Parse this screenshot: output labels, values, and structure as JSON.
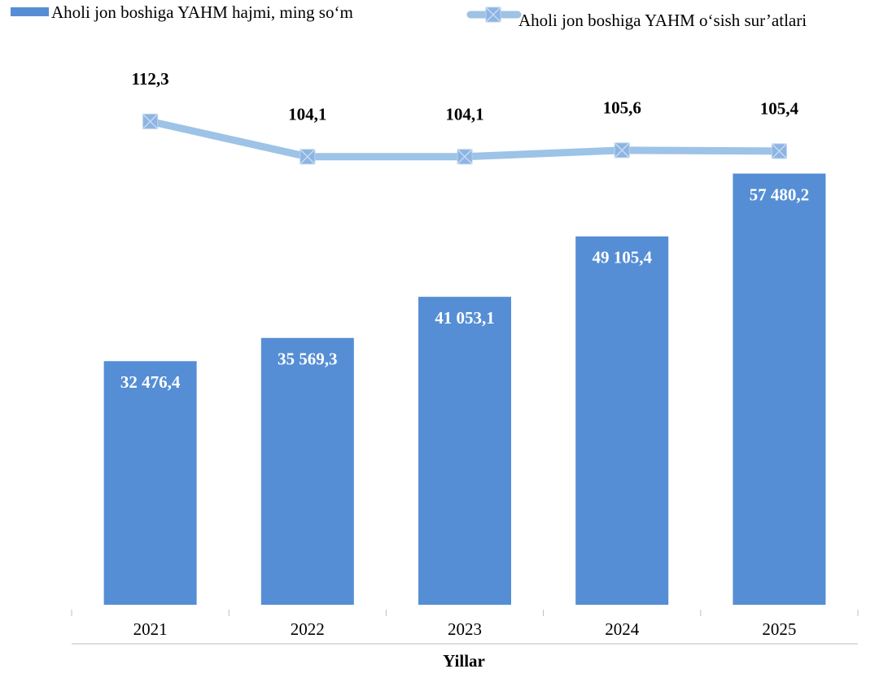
{
  "chart_data": {
    "type": "bar_line",
    "x_label": "Yillar",
    "categories": [
      "2021",
      "2022",
      "2023",
      "2024",
      "2025"
    ],
    "ylim": [
      0,
      70000
    ],
    "y2lim": [
      0,
      122
    ],
    "series": [
      {
        "name": "Aholi jon boshiga YAHM hajmi, ming so‘m",
        "type": "bar",
        "color": "#558ed5",
        "values": [
          32476.4,
          35569.3,
          41053.1,
          49105.4,
          57480.2
        ],
        "value_labels": [
          "32 476,4",
          "35 569,3",
          "41 053,1",
          "49 105,4",
          "57 480,2"
        ]
      },
      {
        "name": "Aholi jon boshiga YAHM o‘sish sur’atlari",
        "type": "line",
        "axis": "y2",
        "color": "#9dc3e6",
        "values": [
          112.3,
          104.1,
          104.1,
          105.6,
          105.4
        ],
        "value_labels": [
          "112,3",
          "104,1",
          "104,1",
          "105,6",
          "105,4"
        ]
      }
    ],
    "legend": "top"
  }
}
